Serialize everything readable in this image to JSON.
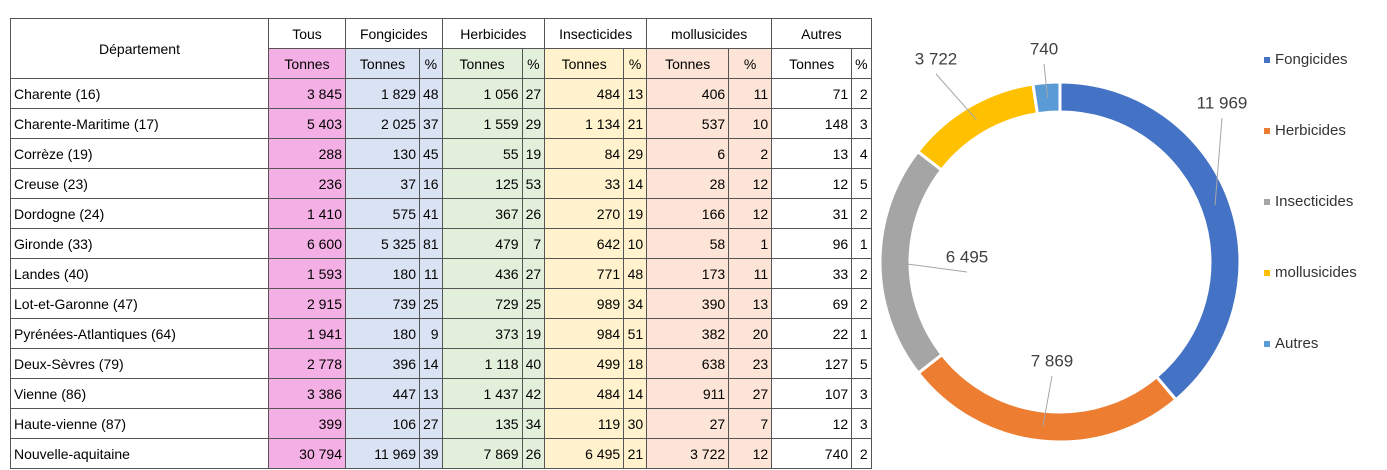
{
  "table": {
    "header": [
      "Département",
      "Tous",
      "Fongicides",
      "Herbicides",
      "Insecticides",
      "mollusicides",
      "Autres"
    ],
    "subheader": [
      "Tonnes",
      "Tonnes",
      "%",
      "Tonnes",
      "%",
      "Tonnes",
      "%",
      "Tonnes",
      "%",
      "Tonnes",
      "%"
    ],
    "rows": [
      [
        "Charente (16)",
        "3 845",
        "1 829",
        "48",
        "1 056",
        "27",
        "484",
        "13",
        "406",
        "11",
        "71",
        "2"
      ],
      [
        "Charente-Maritime (17)",
        "5 403",
        "2 025",
        "37",
        "1 559",
        "29",
        "1 134",
        "21",
        "537",
        "10",
        "148",
        "3"
      ],
      [
        "Corrèze (19)",
        "288",
        "130",
        "45",
        "55",
        "19",
        "84",
        "29",
        "6",
        "2",
        "13",
        "4"
      ],
      [
        "Creuse (23)",
        "236",
        "37",
        "16",
        "125",
        "53",
        "33",
        "14",
        "28",
        "12",
        "12",
        "5"
      ],
      [
        "Dordogne (24)",
        "1 410",
        "575",
        "41",
        "367",
        "26",
        "270",
        "19",
        "166",
        "12",
        "31",
        "2"
      ],
      [
        "Gironde (33)",
        "6 600",
        "5 325",
        "81",
        "479",
        "7",
        "642",
        "10",
        "58",
        "1",
        "96",
        "1"
      ],
      [
        "Landes (40)",
        "1 593",
        "180",
        "11",
        "436",
        "27",
        "771",
        "48",
        "173",
        "11",
        "33",
        "2"
      ],
      [
        "Lot-et-Garonne (47)",
        "2 915",
        "739",
        "25",
        "729",
        "25",
        "989",
        "34",
        "390",
        "13",
        "69",
        "2"
      ],
      [
        "Pyrénées-Atlantiques (64)",
        "1 941",
        "180",
        "9",
        "373",
        "19",
        "984",
        "51",
        "382",
        "20",
        "22",
        "1"
      ],
      [
        "Deux-Sèvres (79)",
        "2 778",
        "396",
        "14",
        "1 118",
        "40",
        "499",
        "18",
        "638",
        "23",
        "127",
        "5"
      ],
      [
        "Vienne (86)",
        "3 386",
        "447",
        "13",
        "1 437",
        "42",
        "484",
        "14",
        "911",
        "27",
        "107",
        "3"
      ],
      [
        "Haute-vienne (87)",
        "399",
        "106",
        "27",
        "135",
        "34",
        "119",
        "30",
        "27",
        "7",
        "12",
        "3"
      ],
      [
        "Nouvelle-aquitaine",
        "30 794",
        "11 969",
        "39",
        "7 869",
        "26",
        "6 495",
        "21",
        "3 722",
        "12",
        "740",
        "2"
      ]
    ]
  },
  "chart_data": {
    "type": "donut",
    "categories": [
      "Fongicides",
      "Herbicides",
      "Insecticides",
      "mollusicides",
      "Autres"
    ],
    "values": [
      11969,
      7869,
      6495,
      3722,
      740
    ],
    "value_labels": [
      "11 969",
      "7 869",
      "6 495",
      "3 722",
      "740"
    ],
    "colors": [
      "#4472c4",
      "#ed7d31",
      "#a5a5a5",
      "#ffc000",
      "#5b9bd5"
    ],
    "legend": "right"
  }
}
